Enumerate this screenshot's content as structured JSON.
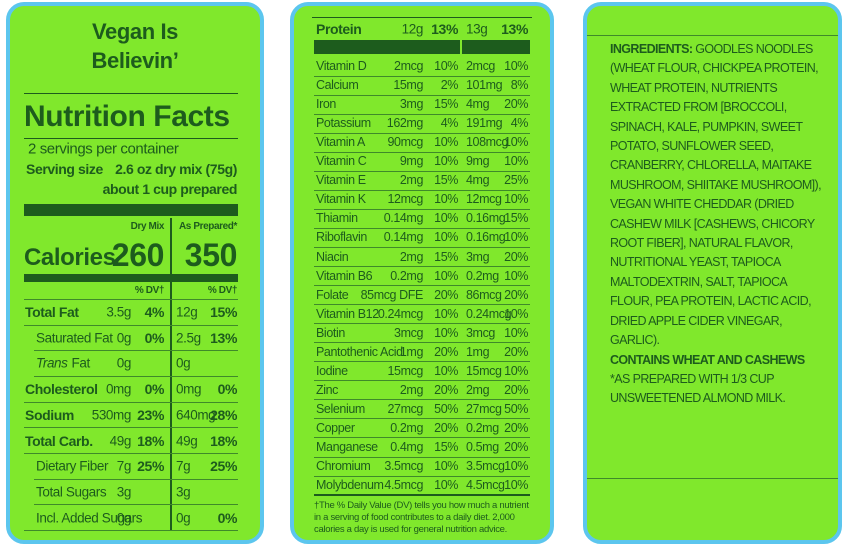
{
  "brand": [
    "Vegan Is",
    "Believin’"
  ],
  "facts": {
    "title": "Nutrition Facts",
    "servings": "2 servings per container",
    "serving_size_label": "Serving size",
    "serving_size": [
      "2.6 oz dry mix (75g)",
      "about 1 cup prepared"
    ],
    "col_headers": [
      "Dry Mix",
      "As Prepared*"
    ],
    "calories_label": "Calories",
    "calories": [
      "260",
      "350"
    ],
    "dv_headers": [
      "% DV†",
      "% DV†"
    ],
    "rows": [
      {
        "name": "Total Fat",
        "style": "bold",
        "dry": "3.5g",
        "dry_dv": "4%",
        "prep": "12g",
        "prep_dv": "15%"
      },
      {
        "name": "Saturated Fat",
        "style": "sub",
        "dry": "0g",
        "dry_dv": "0%",
        "prep": "2.5g",
        "prep_dv": "13%"
      },
      {
        "name_italic": "Trans",
        "name": "Fat",
        "style": "sub",
        "dry": "0g",
        "prep": "0g"
      },
      {
        "name": "Cholesterol",
        "style": "bold",
        "dry": "0mg",
        "dry_dv": "0%",
        "prep": "0mg",
        "prep_dv": "0%"
      },
      {
        "name": "Sodium",
        "style": "bold",
        "dry": "530mg",
        "dry_dv": "23%",
        "prep": "640mg",
        "prep_dv": "28%"
      },
      {
        "name": "Total Carb.",
        "style": "bold",
        "dry": "49g",
        "dry_dv": "18%",
        "prep": "49g",
        "prep_dv": "18%"
      },
      {
        "name": "Dietary Fiber",
        "style": "sub",
        "dry": "7g",
        "dry_dv": "25%",
        "prep": "7g",
        "prep_dv": "25%"
      },
      {
        "name": "Total Sugars",
        "style": "sub",
        "dry": "3g",
        "prep": "3g"
      },
      {
        "name": "Incl. Added Sugars",
        "style": "sub",
        "dry": "0g",
        "prep": "0g",
        "prep_dv": "0%"
      }
    ]
  },
  "protein": {
    "name": "Protein",
    "dry": "12g",
    "dry_dv": "13%",
    "prep": "13g",
    "prep_dv": "13%"
  },
  "micros": [
    {
      "name": "Vitamin D",
      "dry": "2mcg",
      "dry_dv": "10%",
      "prep": "2mcg",
      "prep_dv": "10%"
    },
    {
      "name": "Calcium",
      "dry": "15mg",
      "dry_dv": "2%",
      "prep": "101mg",
      "prep_dv": "8%"
    },
    {
      "name": "Iron",
      "dry": "3mg",
      "dry_dv": "15%",
      "prep": "4mg",
      "prep_dv": "20%"
    },
    {
      "name": "Potassium",
      "dry": "162mg",
      "dry_dv": "4%",
      "prep": "191mg",
      "prep_dv": "4%"
    },
    {
      "name": "Vitamin A",
      "dry": "90mcg",
      "dry_dv": "10%",
      "prep": "108mcg",
      "prep_dv": "10%"
    },
    {
      "name": "Vitamin C",
      "dry": "9mg",
      "dry_dv": "10%",
      "prep": "9mg",
      "prep_dv": "10%"
    },
    {
      "name": "Vitamin E",
      "dry": "2mg",
      "dry_dv": "15%",
      "prep": "4mg",
      "prep_dv": "25%"
    },
    {
      "name": "Vitamin K",
      "dry": "12mcg",
      "dry_dv": "10%",
      "prep": "12mcg",
      "prep_dv": "10%"
    },
    {
      "name": "Thiamin",
      "dry": "0.14mg",
      "dry_dv": "10%",
      "prep": "0.16mg",
      "prep_dv": "15%"
    },
    {
      "name": "Riboflavin",
      "dry": "0.14mg",
      "dry_dv": "10%",
      "prep": "0.16mg",
      "prep_dv": "10%"
    },
    {
      "name": "Niacin",
      "dry": "2mg",
      "dry_dv": "15%",
      "prep": "3mg",
      "prep_dv": "20%"
    },
    {
      "name": "Vitamin B6",
      "dry": "0.2mg",
      "dry_dv": "10%",
      "prep": "0.2mg",
      "prep_dv": "10%"
    },
    {
      "name": "Folate",
      "dry": "85mcg DFE",
      "dry_dv": "20%",
      "prep": "86mcg",
      "prep_dv": "20%"
    },
    {
      "name": "Vitamin B12",
      "dry": "0.24mcg",
      "dry_dv": "10%",
      "prep": "0.24mcg",
      "prep_dv": "10%"
    },
    {
      "name": "Biotin",
      "dry": "3mcg",
      "dry_dv": "10%",
      "prep": "3mcg",
      "prep_dv": "10%"
    },
    {
      "name": "Pantothenic Acid",
      "dry": "1mg",
      "dry_dv": "20%",
      "prep": "1mg",
      "prep_dv": "20%"
    },
    {
      "name": "Iodine",
      "dry": "15mcg",
      "dry_dv": "10%",
      "prep": "15mcg",
      "prep_dv": "10%"
    },
    {
      "name": "Zinc",
      "dry": "2mg",
      "dry_dv": "20%",
      "prep": "2mg",
      "prep_dv": "20%"
    },
    {
      "name": "Selenium",
      "dry": "27mcg",
      "dry_dv": "50%",
      "prep": "27mcg",
      "prep_dv": "50%"
    },
    {
      "name": "Copper",
      "dry": "0.2mg",
      "dry_dv": "20%",
      "prep": "0.2mg",
      "prep_dv": "20%"
    },
    {
      "name": "Manganese",
      "dry": "0.4mg",
      "dry_dv": "15%",
      "prep": "0.5mg",
      "prep_dv": "20%"
    },
    {
      "name": "Chromium",
      "dry": "3.5mcg",
      "dry_dv": "10%",
      "prep": "3.5mcg",
      "prep_dv": "10%"
    },
    {
      "name": "Molybdenum",
      "dry": "4.5mcg",
      "dry_dv": "10%",
      "prep": "4.5mcg",
      "prep_dv": "10%"
    }
  ],
  "footnote": "†The % Daily Value (DV) tells you how much a nutrient in a serving of  food contributes to a daily diet. 2,000 calories a day is used for general nutrition advice.",
  "ingredients": {
    "label": "INGREDIENTS:",
    "text": "GOODLES NOODLES (WHEAT FLOUR, CHICKPEA PROTEIN, WHEAT PROTEIN, NUTRIENTS EXTRACTED FROM [BROCCOLI, SPINACH, KALE, PUMPKIN, SWEET POTATO, SUNFLOWER SEED, CRANBERRY, CHLORELLA, MAITAKE MUSHROOM, SHIITAKE MUSHROOM]), VEGAN WHITE CHEDDAR (DRIED CASHEW MILK [CASHEWS, CHICORY ROOT FIBER], NATURAL FLAVOR, NUTRITIONAL YEAST, TAPIOCA MALTODEXTRIN, SALT, TAPIOCA FLOUR, PEA PROTEIN, LACTIC ACID, DRIED APPLE CIDER VINEGAR, GARLIC).",
    "contains": "CONTAINS WHEAT AND CASHEWS",
    "note": "*AS PREPARED WITH 1/3 CUP UNSWEETENED ALMOND MILK."
  }
}
